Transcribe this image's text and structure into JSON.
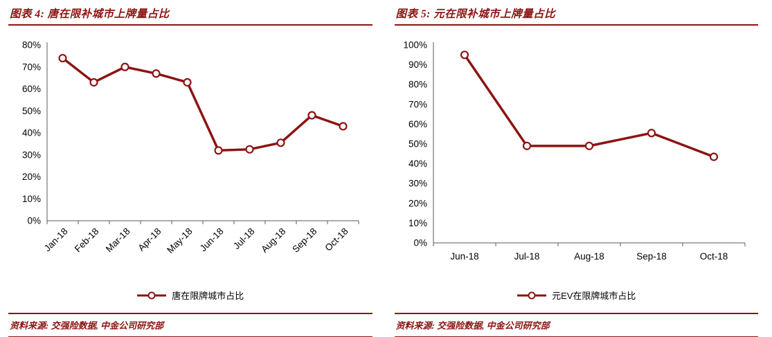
{
  "colors": {
    "accent": "#8B1412",
    "axis": "#595959",
    "text": "#000000",
    "marker_fill": "#FFFFFF"
  },
  "panels": [
    {
      "source": "资料来源: 交强险数据, 中金公司研究部"
    },
    {
      "source": "资料来源: 交强险数据, 中金公司研究部"
    }
  ],
  "chart_data": [
    {
      "type": "line",
      "title": "图表 4: 唐在限补城市上牌量占比",
      "categories": [
        "Jan-18",
        "Feb-18",
        "Mar-18",
        "Apr-18",
        "May-18",
        "Jun-18",
        "Jul-18",
        "Aug-18",
        "Sep-18",
        "Oct-18"
      ],
      "series": [
        {
          "name": "唐在限牌城市占比",
          "values": [
            74,
            63,
            70,
            67,
            63,
            32,
            32.5,
            35.5,
            48,
            43
          ]
        }
      ],
      "xlabel": "",
      "ylabel": "",
      "ylim": [
        0,
        80
      ],
      "ytick_step": 10,
      "ytick_format": "percent",
      "x_label_rotation": -45,
      "grid": false,
      "legend_position": "bottom"
    },
    {
      "type": "line",
      "title": "图表 5: 元在限补城市上牌量占比",
      "categories": [
        "Jun-18",
        "Jul-18",
        "Aug-18",
        "Sep-18",
        "Oct-18"
      ],
      "series": [
        {
          "name": "元EV在限牌城市占比",
          "values": [
            95,
            49,
            49,
            55.5,
            43.5
          ]
        }
      ],
      "xlabel": "",
      "ylabel": "",
      "ylim": [
        0,
        100
      ],
      "ytick_step": 10,
      "ytick_format": "percent",
      "x_label_rotation": 0,
      "grid": false,
      "legend_position": "bottom"
    }
  ]
}
